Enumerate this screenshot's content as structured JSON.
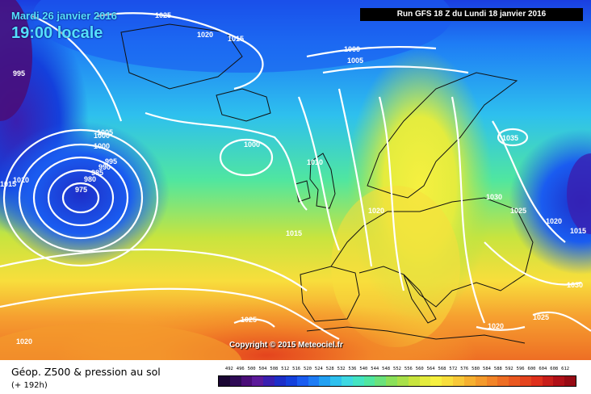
{
  "header": {
    "date": "Mardi 26 janvier 2016",
    "time": "19:00 locale",
    "run": "Run GFS 18 Z du Lundi 18 janvier 2016"
  },
  "copyright": "Copyright © 2015 Meteociel.fr",
  "footer": {
    "title": "Géop. Z500 & pression au sol",
    "range": "(+ 192h)"
  },
  "legend": {
    "ticks": [
      "492",
      "496",
      "500",
      "504",
      "508",
      "512",
      "516",
      "520",
      "524",
      "528",
      "532",
      "536",
      "540",
      "544",
      "548",
      "552",
      "556",
      "560",
      "564",
      "568",
      "572",
      "576",
      "580",
      "584",
      "588",
      "592",
      "596",
      "600",
      "604",
      "608",
      "612"
    ],
    "colors": [
      "#1a0633",
      "#2e0a55",
      "#4a0d78",
      "#5c1a9a",
      "#3a1fb0",
      "#1d2ec8",
      "#1440dc",
      "#1a5cf0",
      "#1e7cf5",
      "#22a0f2",
      "#2ec0ee",
      "#3ed8e2",
      "#44e4c2",
      "#50e6a0",
      "#6ae27c",
      "#8ae05a",
      "#a8e04a",
      "#c8e43e",
      "#e4ec3e",
      "#f6f040",
      "#f8de3c",
      "#f8c838",
      "#f6b030",
      "#f49a2c",
      "#f28428",
      "#ee6e24",
      "#ea5820",
      "#e4441e",
      "#de301c",
      "#c81e1a",
      "#b01018",
      "#960a14"
    ]
  },
  "isobar_labels": [
    "1025",
    "1020",
    "1015",
    "995",
    "1000",
    "1005",
    "1000",
    "995",
    "990",
    "985",
    "980",
    "975",
    "1010",
    "1015",
    "1000",
    "1010",
    "1015",
    "1020",
    "1035",
    "1030",
    "1025",
    "1020",
    "1015",
    "1030",
    "1020",
    "1025",
    "1025",
    "1020",
    "1000",
    "1005"
  ]
}
